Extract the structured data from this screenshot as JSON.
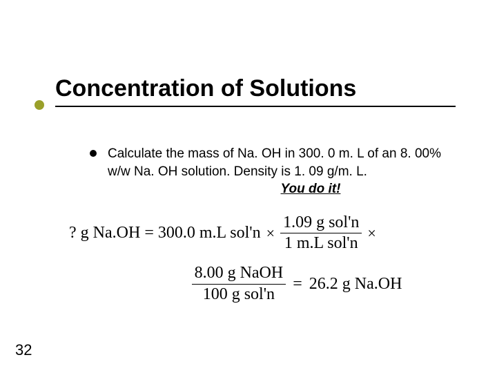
{
  "slide": {
    "title": "Concentration of Solutions",
    "accent_color": "#9aa02a",
    "page_number": "32",
    "bullet": {
      "text": "Calculate the mass of Na. OH in 300. 0 m. L of an 8. 00% w/w Na. OH solution.  Density is 1. 09 g/m. L."
    },
    "you_do_it": "You do it!",
    "equation": {
      "lhs": "? g Na.OH",
      "eq": "=",
      "term1": "300.0 m.L sol'n",
      "times": "×",
      "frac1_num": "1.09 g sol'n",
      "frac1_den": "1 m.L sol'n",
      "trailing_times": "×",
      "frac2_num": "8.00 g NaOH",
      "frac2_den": "100 g sol'n",
      "result_eq": "=",
      "result": "26.2 g Na.OH"
    }
  }
}
